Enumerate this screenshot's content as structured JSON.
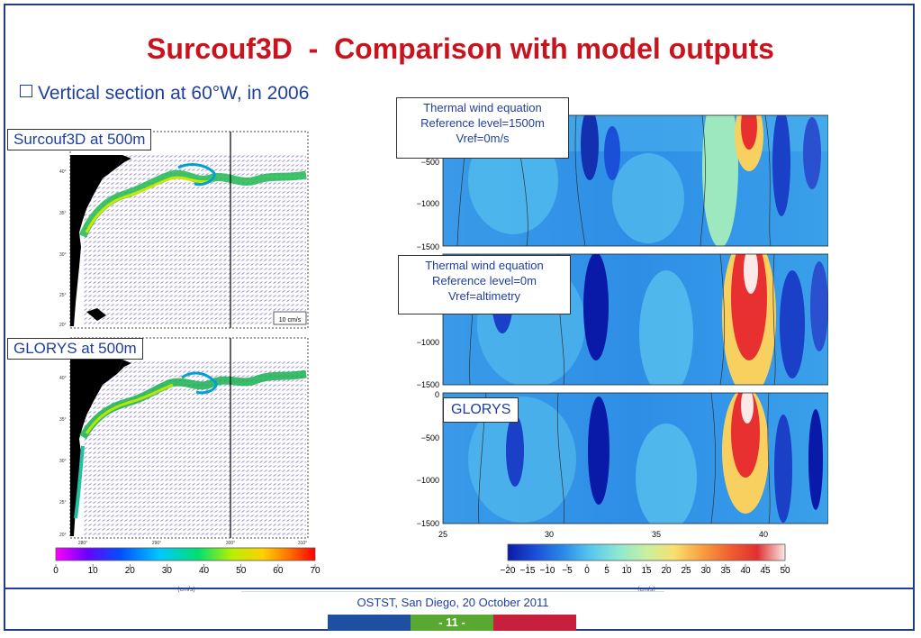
{
  "slide": {
    "title": "Surcouf3D  -  Comparison with model outputs",
    "bullet": "Vertical section at 60°W, in 2006"
  },
  "maps": {
    "top_label": "Surcouf3D at 500m",
    "bottom_label": "GLORYS at 500m",
    "scale_label": "10 cm/s",
    "lat_ticks": [
      "40°",
      "35°",
      "30°",
      "25°",
      "20°"
    ],
    "lon_ticks": [
      "280°",
      "290°",
      "300°",
      "310°"
    ],
    "colorbar": {
      "ticks": [
        "0",
        "10",
        "20",
        "30",
        "40",
        "50",
        "60",
        "70"
      ],
      "unit": "(cm/s)"
    }
  },
  "sections": {
    "panel1_caption": [
      "Thermal wind equation",
      "Reference level=1500m",
      "Vref=0m/s"
    ],
    "panel2_caption": [
      "Thermal wind equation",
      "Reference level=0m",
      "Vref=altimetry"
    ],
    "panel3_caption": "GLORYS",
    "depth_ticks": [
      "0",
      "−500",
      "−1000",
      "−1500"
    ],
    "lat_ticks": [
      "25",
      "30",
      "35",
      "40"
    ],
    "colorbar": {
      "ticks": [
        "−20",
        "−15",
        "−10",
        "−5",
        "0",
        "5",
        "10",
        "15",
        "20",
        "25",
        "30",
        "35",
        "40",
        "45",
        "50"
      ],
      "unit": "(cm/s)"
    }
  },
  "footer": {
    "text": "OSTST, San Diego, 20 October 2011",
    "page": "- 11 -"
  }
}
